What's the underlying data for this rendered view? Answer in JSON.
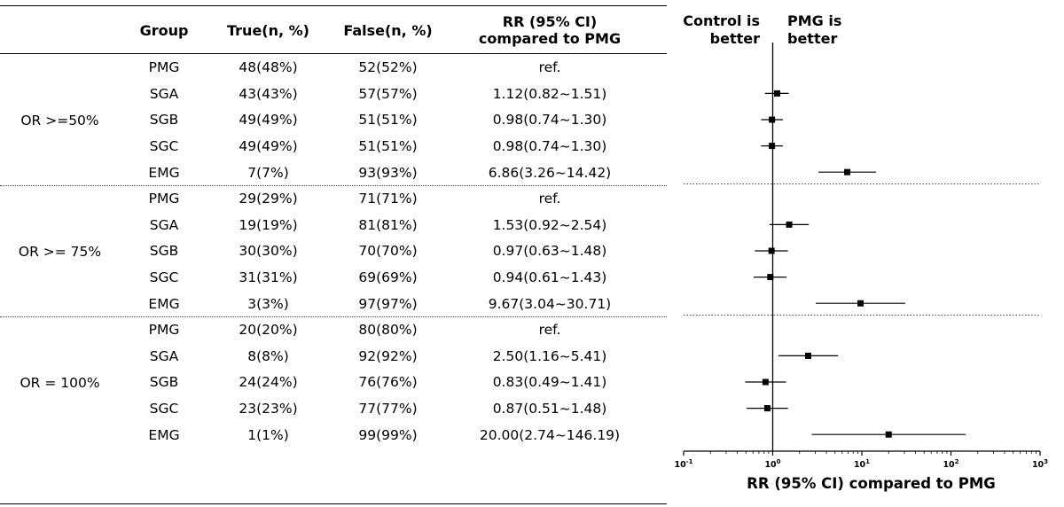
{
  "table": {
    "headers": {
      "group": "Group",
      "true": "True(n, %)",
      "false": "False(n, %)",
      "rr_line1": "RR (95% CI)",
      "rr_line2": "compared to PMG"
    },
    "blocks": [
      {
        "label": "OR >=50%",
        "rows": [
          {
            "group": "PMG",
            "true": "48(48%)",
            "false": "52(52%)",
            "rr": "ref."
          },
          {
            "group": "SGA",
            "true": "43(43%)",
            "false": "57(57%)",
            "rr": "1.12(0.82~1.51)"
          },
          {
            "group": "SGB",
            "true": "49(49%)",
            "false": "51(51%)",
            "rr": "0.98(0.74~1.30)"
          },
          {
            "group": "SGC",
            "true": "49(49%)",
            "false": "51(51%)",
            "rr": "0.98(0.74~1.30)"
          },
          {
            "group": "EMG",
            "true": "7(7%)",
            "false": "93(93%)",
            "rr": "6.86(3.26~14.42)"
          }
        ]
      },
      {
        "label": "OR >= 75%",
        "rows": [
          {
            "group": "PMG",
            "true": "29(29%)",
            "false": "71(71%)",
            "rr": "ref."
          },
          {
            "group": "SGA",
            "true": "19(19%)",
            "false": "81(81%)",
            "rr": "1.53(0.92~2.54)"
          },
          {
            "group": "SGB",
            "true": "30(30%)",
            "false": "70(70%)",
            "rr": "0.97(0.63~1.48)"
          },
          {
            "group": "SGC",
            "true": "31(31%)",
            "false": "69(69%)",
            "rr": "0.94(0.61~1.43)"
          },
          {
            "group": "EMG",
            "true": "3(3%)",
            "false": "97(97%)",
            "rr": "9.67(3.04~30.71)"
          }
        ]
      },
      {
        "label": "OR = 100%",
        "rows": [
          {
            "group": "PMG",
            "true": "20(20%)",
            "false": "80(80%)",
            "rr": "ref."
          },
          {
            "group": "SGA",
            "true": "8(8%)",
            "false": "92(92%)",
            "rr": "2.50(1.16~5.41)"
          },
          {
            "group": "SGB",
            "true": "24(24%)",
            "false": "76(76%)",
            "rr": "0.83(0.49~1.41)"
          },
          {
            "group": "SGC",
            "true": "23(23%)",
            "false": "77(77%)",
            "rr": "0.87(0.51~1.48)"
          },
          {
            "group": "EMG",
            "true": "1(1%)",
            "false": "99(99%)",
            "rr": "20.00(2.74~146.19)"
          }
        ]
      }
    ]
  },
  "chart_data": {
    "type": "forest",
    "xscale": "log10",
    "xlim": [
      0.1,
      1000
    ],
    "reference_line": 1,
    "xlabel": "RR (95% CI) compared to PMG",
    "left_label": [
      "Control is",
      "better"
    ],
    "right_label": [
      "PMG is",
      "better"
    ],
    "x_ticks": [
      {
        "base": "10",
        "exp": "-1"
      },
      {
        "base": "10",
        "exp": "0"
      },
      {
        "base": "10",
        "exp": "1"
      },
      {
        "base": "10",
        "exp": "2"
      },
      {
        "base": "10",
        "exp": "3"
      }
    ],
    "tick_values": [
      0.1,
      1,
      10,
      100,
      1000
    ],
    "groups": [
      {
        "label": "OR >=50%",
        "points": [
          {
            "name": "SGA",
            "rr": 1.12,
            "lo": 0.82,
            "hi": 1.51
          },
          {
            "name": "SGB",
            "rr": 0.98,
            "lo": 0.74,
            "hi": 1.3
          },
          {
            "name": "SGC",
            "rr": 0.98,
            "lo": 0.74,
            "hi": 1.3
          },
          {
            "name": "EMG",
            "rr": 6.86,
            "lo": 3.26,
            "hi": 14.42
          }
        ]
      },
      {
        "label": "OR >= 75%",
        "points": [
          {
            "name": "SGA",
            "rr": 1.53,
            "lo": 0.92,
            "hi": 2.54
          },
          {
            "name": "SGB",
            "rr": 0.97,
            "lo": 0.63,
            "hi": 1.48
          },
          {
            "name": "SGC",
            "rr": 0.94,
            "lo": 0.61,
            "hi": 1.43
          },
          {
            "name": "EMG",
            "rr": 9.67,
            "lo": 3.04,
            "hi": 30.71
          }
        ]
      },
      {
        "label": "OR = 100%",
        "points": [
          {
            "name": "SGA",
            "rr": 2.5,
            "lo": 1.16,
            "hi": 5.41
          },
          {
            "name": "SGB",
            "rr": 0.83,
            "lo": 0.49,
            "hi": 1.41
          },
          {
            "name": "SGC",
            "rr": 0.87,
            "lo": 0.51,
            "hi": 1.48
          },
          {
            "name": "EMG",
            "rr": 20.0,
            "lo": 2.74,
            "hi": 146.19
          }
        ]
      }
    ]
  }
}
